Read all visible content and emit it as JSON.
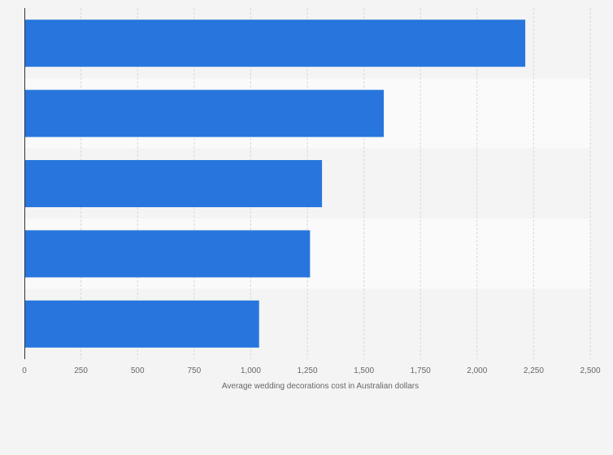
{
  "chart_data": {
    "type": "bar",
    "orientation": "horizontal",
    "categories": [
      "",
      "",
      "",
      "",
      ""
    ],
    "values": [
      2213,
      1588,
      1315,
      1262,
      1037
    ],
    "title": "",
    "xlabel": "Average wedding decorations cost in Australian dollars",
    "ylabel": "",
    "xlim": [
      0,
      2500
    ],
    "ticks": [
      0,
      250,
      500,
      750,
      1000,
      1250,
      1500,
      1750,
      2000,
      2250,
      2500
    ],
    "tick_labels": [
      "0",
      "250",
      "500",
      "750",
      "1,000",
      "1,250",
      "1,500",
      "1,750",
      "2,000",
      "2,250",
      "2,500"
    ],
    "grid": true,
    "bar_color": "#2876dd",
    "band_colors": [
      "#f4f4f4",
      "#fafafa"
    ]
  }
}
